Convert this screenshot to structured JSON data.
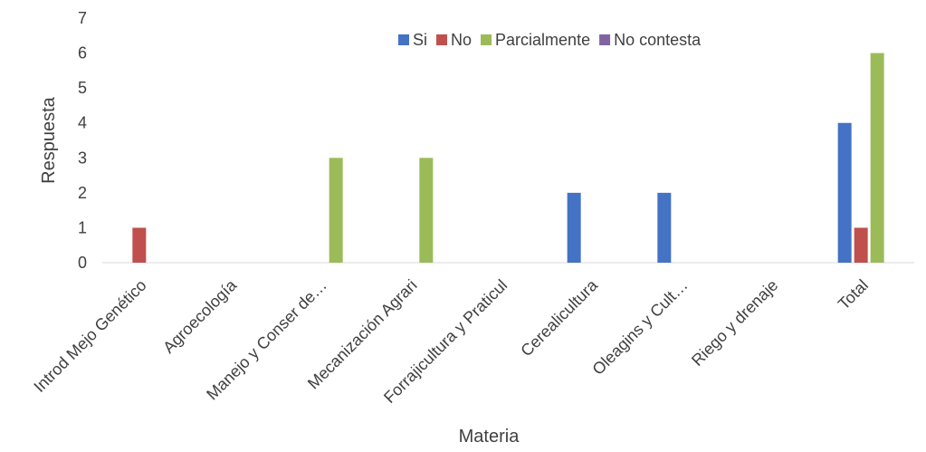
{
  "chart_data": {
    "type": "bar",
    "title": "",
    "xlabel": "Materia",
    "ylabel": "Respuesta",
    "ylim": [
      0,
      7
    ],
    "yticks": [
      0,
      1,
      2,
      3,
      4,
      5,
      6,
      7
    ],
    "grid": false,
    "legend_position": "top-right",
    "categories": [
      "Introd Mejo Genético",
      "Agroecología",
      "Manejo y Conser de…",
      "Mecanización Agrari",
      "Forrajicultura y Praticul",
      "Cerealicultura",
      "Oleagins y Cult…",
      "Riego y drenaje",
      "Total"
    ],
    "series": [
      {
        "name": "Si",
        "color": "#4472C4",
        "values": [
          0,
          0,
          0,
          0,
          0,
          2,
          2,
          0,
          4
        ]
      },
      {
        "name": "No",
        "color": "#C0504D",
        "values": [
          1,
          0,
          0,
          0,
          0,
          0,
          0,
          0,
          1
        ]
      },
      {
        "name": "Parcialmente",
        "color": "#9BBB59",
        "values": [
          0,
          0,
          3,
          3,
          0,
          0,
          0,
          0,
          6
        ]
      },
      {
        "name": "No contesta",
        "color": "#8064A2",
        "values": [
          0,
          0,
          0,
          0,
          0,
          0,
          0,
          0,
          0
        ]
      }
    ]
  }
}
